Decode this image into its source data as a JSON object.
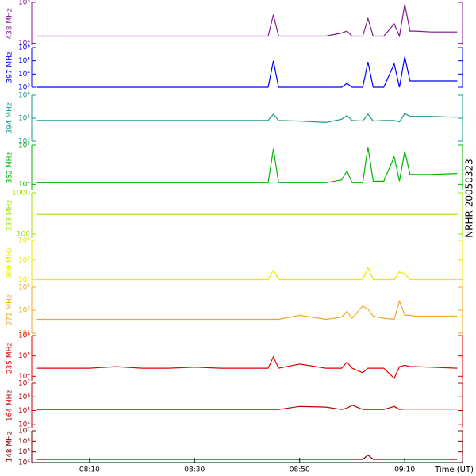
{
  "title": "NRHR 20050323",
  "chart_data": [
    {
      "type": "line",
      "ylabel": "438 MHz",
      "color": "#7f1a8f",
      "log": true,
      "xlim": [
        "07:59",
        "09:21"
      ],
      "ylim": [
        9000,
        100000
      ],
      "yticks": [
        {
          "value": 10000,
          "label": "10⁴"
        },
        {
          "value": 100000,
          "label": "10⁵"
        }
      ],
      "x": [
        "08:00",
        "08:05",
        "08:10",
        "08:15",
        "08:20",
        "08:25",
        "08:30",
        "08:35",
        "08:40",
        "08:44",
        "08:45",
        "08:46",
        "08:50",
        "08:55",
        "08:58",
        "08:59",
        "09:00",
        "09:02",
        "09:03",
        "09:04",
        "09:06",
        "09:08",
        "09:09",
        "09:10",
        "09:11",
        "09:12",
        "09:15",
        "09:20"
      ],
      "values": [
        15000,
        15000,
        15000,
        15000,
        15000,
        15000,
        15000,
        15000,
        15000,
        15000,
        50000,
        15000,
        15000,
        15000,
        18000,
        20000,
        15000,
        15000,
        40000,
        15000,
        15000,
        30000,
        15000,
        90000,
        20000,
        20000,
        19000,
        19000
      ]
    },
    {
      "type": "line",
      "ylabel": "397 MHz",
      "color": "#0000ff",
      "log": true,
      "xlim": [
        "07:59",
        "09:21"
      ],
      "ylim": [
        1000,
        1000000
      ],
      "yticks": [
        {
          "value": 1000,
          "label": "10³"
        },
        {
          "value": 10000,
          "label": "10⁴"
        },
        {
          "value": 100000,
          "label": "10⁵"
        },
        {
          "value": 1000000,
          "label": "10⁶"
        }
      ],
      "x": [
        "08:00",
        "08:05",
        "08:10",
        "08:15",
        "08:20",
        "08:25",
        "08:30",
        "08:35",
        "08:40",
        "08:44",
        "08:45",
        "08:46",
        "08:50",
        "08:55",
        "08:58",
        "08:59",
        "09:00",
        "09:02",
        "09:03",
        "09:04",
        "09:06",
        "09:08",
        "09:09",
        "09:10",
        "09:11",
        "09:12",
        "09:15",
        "09:20"
      ],
      "values": [
        1000,
        1000,
        1000,
        1000,
        1000,
        1000,
        1000,
        1000,
        1000,
        1000,
        100000,
        1000,
        1000,
        1000,
        1000,
        2000,
        1000,
        1000,
        80000,
        1000,
        1000,
        60000,
        1000,
        200000,
        3000,
        3000,
        3000,
        3000
      ]
    },
    {
      "type": "line",
      "ylabel": "394 MHz",
      "color": "#1a9a8a",
      "log": true,
      "xlim": [
        "07:59",
        "09:21"
      ],
      "ylim": [
        10000,
        1000000
      ],
      "yticks": [
        {
          "value": 10000,
          "label": "10⁴"
        },
        {
          "value": 100000,
          "label": "10⁵"
        },
        {
          "value": 1000000,
          "label": "10⁶"
        }
      ],
      "x": [
        "08:00",
        "08:05",
        "08:10",
        "08:15",
        "08:20",
        "08:25",
        "08:30",
        "08:35",
        "08:40",
        "08:44",
        "08:45",
        "08:46",
        "08:50",
        "08:55",
        "08:58",
        "08:59",
        "09:00",
        "09:02",
        "09:03",
        "09:04",
        "09:06",
        "09:08",
        "09:09",
        "09:10",
        "09:11",
        "09:12",
        "09:15",
        "09:20"
      ],
      "values": [
        80000,
        80000,
        80000,
        80000,
        80000,
        80000,
        80000,
        80000,
        80000,
        80000,
        150000,
        80000,
        75000,
        65000,
        90000,
        130000,
        80000,
        75000,
        150000,
        75000,
        80000,
        80000,
        70000,
        160000,
        120000,
        120000,
        120000,
        110000
      ]
    },
    {
      "type": "line",
      "ylabel": "352 MHz",
      "color": "#00b400",
      "log": true,
      "xlim": [
        "07:59",
        "09:21"
      ],
      "ylim": [
        7000,
        100000
      ],
      "yticks": [
        {
          "value": 10000,
          "label": "10⁴"
        },
        {
          "value": 100000,
          "label": "10⁵"
        }
      ],
      "x": [
        "08:00",
        "08:05",
        "08:10",
        "08:15",
        "08:20",
        "08:25",
        "08:30",
        "08:35",
        "08:40",
        "08:44",
        "08:45",
        "08:46",
        "08:50",
        "08:55",
        "08:58",
        "08:59",
        "09:00",
        "09:02",
        "09:03",
        "09:04",
        "09:06",
        "09:08",
        "09:09",
        "09:10",
        "09:11",
        "09:12",
        "09:15",
        "09:20"
      ],
      "values": [
        11000,
        11000,
        11000,
        11000,
        11000,
        11000,
        11000,
        11000,
        11000,
        11000,
        80000,
        11000,
        11000,
        11000,
        13000,
        22000,
        11000,
        11000,
        90000,
        12000,
        12000,
        50000,
        12000,
        70000,
        18000,
        18000,
        18000,
        19000
      ]
    },
    {
      "type": "line",
      "ylabel": "333 MHz",
      "color": "#a0e000",
      "log": true,
      "xlim": [
        "07:59",
        "09:21"
      ],
      "ylim": [
        80,
        1000
      ],
      "yticks": [
        100,
        1000
      ],
      "x": [
        "08:00",
        "08:05",
        "08:10",
        "08:15",
        "08:20",
        "08:25",
        "08:30",
        "08:35",
        "08:40",
        "08:44",
        "08:45",
        "08:46",
        "08:50",
        "08:55",
        "08:58",
        "08:59",
        "09:00",
        "09:02",
        "09:03",
        "09:04",
        "09:06",
        "09:08",
        "09:09",
        "09:10",
        "09:11",
        "09:12",
        "09:15",
        "09:20"
      ],
      "values": [
        300,
        300,
        300,
        300,
        300,
        300,
        300,
        300,
        300,
        300,
        300,
        300,
        300,
        300,
        300,
        300,
        300,
        300,
        300,
        300,
        300,
        300,
        300,
        300,
        300,
        300,
        300,
        300
      ]
    },
    {
      "type": "line",
      "ylabel": "309 MHz",
      "color": "#e8e800",
      "log": true,
      "xlim": [
        "07:59",
        "09:21"
      ],
      "ylim": [
        5000,
        1000000
      ],
      "yticks": [
        {
          "value": 10000,
          "label": "10⁴"
        },
        {
          "value": 100000,
          "label": "10⁵"
        },
        {
          "value": 1000000,
          "label": "10⁶"
        }
      ],
      "x": [
        "08:00",
        "08:05",
        "08:10",
        "08:15",
        "08:20",
        "08:25",
        "08:30",
        "08:35",
        "08:40",
        "08:44",
        "08:45",
        "08:46",
        "08:50",
        "08:55",
        "08:58",
        "08:59",
        "09:00",
        "09:02",
        "09:03",
        "09:04",
        "09:06",
        "09:08",
        "09:09",
        "09:10",
        "09:11",
        "09:12",
        "09:15",
        "09:20"
      ],
      "values": [
        10000,
        10000,
        10000,
        10000,
        10000,
        10000,
        10000,
        10000,
        10000,
        10000,
        30000,
        10000,
        10000,
        10000,
        10000,
        10000,
        10000,
        10000,
        40000,
        10000,
        10000,
        10000,
        25000,
        20000,
        10000,
        10000,
        10000,
        10000
      ]
    },
    {
      "type": "line",
      "ylabel": "271 MHz",
      "color": "#f0a820",
      "log": true,
      "xlim": [
        "07:59",
        "09:21"
      ],
      "ylim": [
        10000,
        1000000
      ],
      "yticks": [
        {
          "value": 10000,
          "label": "10⁴"
        },
        {
          "value": 100000,
          "label": "10⁵"
        },
        {
          "value": 1000000,
          "label": "10⁶"
        }
      ],
      "x": [
        "08:00",
        "08:05",
        "08:10",
        "08:15",
        "08:20",
        "08:25",
        "08:30",
        "08:35",
        "08:40",
        "08:44",
        "08:45",
        "08:46",
        "08:50",
        "08:55",
        "08:58",
        "08:59",
        "09:00",
        "09:02",
        "09:03",
        "09:04",
        "09:06",
        "09:08",
        "09:09",
        "09:10",
        "09:11",
        "09:12",
        "09:15",
        "09:20"
      ],
      "values": [
        40000,
        40000,
        40000,
        40000,
        40000,
        40000,
        40000,
        40000,
        40000,
        40000,
        40000,
        40000,
        60000,
        40000,
        50000,
        90000,
        45000,
        150000,
        110000,
        55000,
        45000,
        40000,
        250000,
        60000,
        60000,
        55000,
        55000,
        55000
      ]
    },
    {
      "type": "line",
      "ylabel": "235 MHz",
      "color": "#e00000",
      "log": true,
      "xlim": [
        "07:59",
        "09:21"
      ],
      "ylim": [
        6000,
        1000000
      ],
      "yticks": [
        {
          "value": 10000,
          "label": "10⁴"
        },
        {
          "value": 100000,
          "label": "10⁵"
        },
        {
          "value": 1000000,
          "label": "10⁶"
        }
      ],
      "x": [
        "08:00",
        "08:05",
        "08:10",
        "08:15",
        "08:20",
        "08:25",
        "08:30",
        "08:35",
        "08:40",
        "08:44",
        "08:45",
        "08:46",
        "08:50",
        "08:55",
        "08:58",
        "08:59",
        "09:00",
        "09:02",
        "09:03",
        "09:04",
        "09:06",
        "09:08",
        "09:09",
        "09:10",
        "09:11",
        "09:12",
        "09:15",
        "09:20"
      ],
      "values": [
        25000,
        25000,
        25000,
        30000,
        25000,
        25000,
        28000,
        25000,
        25000,
        25000,
        90000,
        25000,
        40000,
        25000,
        25000,
        50000,
        25000,
        15000,
        25000,
        25000,
        25000,
        8000,
        30000,
        35000,
        30000,
        30000,
        28000,
        25000
      ]
    },
    {
      "type": "line",
      "ylabel": "164 MHz",
      "color": "#c00000",
      "log": true,
      "xlim": [
        "07:59",
        "09:21"
      ],
      "ylim": [
        5000,
        10000000
      ],
      "yticks": [
        {
          "value": 10000,
          "label": "10⁴"
        },
        {
          "value": 100000,
          "label": "10⁵"
        },
        {
          "value": 1000000,
          "label": "10⁶"
        },
        {
          "value": 10000000,
          "label": "10⁷"
        }
      ],
      "x": [
        "08:00",
        "08:05",
        "08:10",
        "08:15",
        "08:20",
        "08:25",
        "08:30",
        "08:35",
        "08:40",
        "08:44",
        "08:45",
        "08:46",
        "08:50",
        "08:55",
        "08:58",
        "08:59",
        "09:00",
        "09:02",
        "09:03",
        "09:04",
        "09:06",
        "09:08",
        "09:09",
        "09:10",
        "09:11",
        "09:12",
        "09:15",
        "09:20"
      ],
      "values": [
        120000,
        120000,
        120000,
        120000,
        120000,
        120000,
        120000,
        120000,
        120000,
        120000,
        120000,
        120000,
        200000,
        180000,
        120000,
        150000,
        250000,
        120000,
        120000,
        120000,
        120000,
        200000,
        120000,
        130000,
        130000,
        130000,
        130000,
        130000
      ]
    },
    {
      "type": "line",
      "ylabel": "148 MHz",
      "color": "#7a0000",
      "log": true,
      "xlim": [
        "07:59",
        "09:21"
      ],
      "ylim": [
        10000,
        10000000
      ],
      "yticks": [
        {
          "value": 10000,
          "label": "10⁴"
        },
        {
          "value": 100000,
          "label": "10⁵"
        },
        {
          "value": 1000000,
          "label": "10⁶"
        },
        {
          "value": 10000000,
          "label": "10⁷"
        }
      ],
      "x": [
        "08:00",
        "08:05",
        "08:10",
        "08:15",
        "08:20",
        "08:25",
        "08:30",
        "08:35",
        "08:40",
        "08:44",
        "08:45",
        "08:46",
        "08:50",
        "08:55",
        "08:58",
        "08:59",
        "09:00",
        "09:02",
        "09:03",
        "09:04",
        "09:06",
        "09:08",
        "09:09",
        "09:10",
        "09:11",
        "09:12",
        "09:15",
        "09:20"
      ],
      "values": [
        20000,
        20000,
        20000,
        20000,
        20000,
        20000,
        20000,
        20000,
        20000,
        20000,
        20000,
        20000,
        20000,
        20000,
        20000,
        20000,
        20000,
        20000,
        50000,
        20000,
        20000,
        20000,
        20000,
        20000,
        20000,
        20000,
        20000,
        20000
      ],
      "xticks": [
        "08:10",
        "08:30",
        "08:50",
        "09:10"
      ],
      "xlabel": "Time (UT)"
    }
  ]
}
